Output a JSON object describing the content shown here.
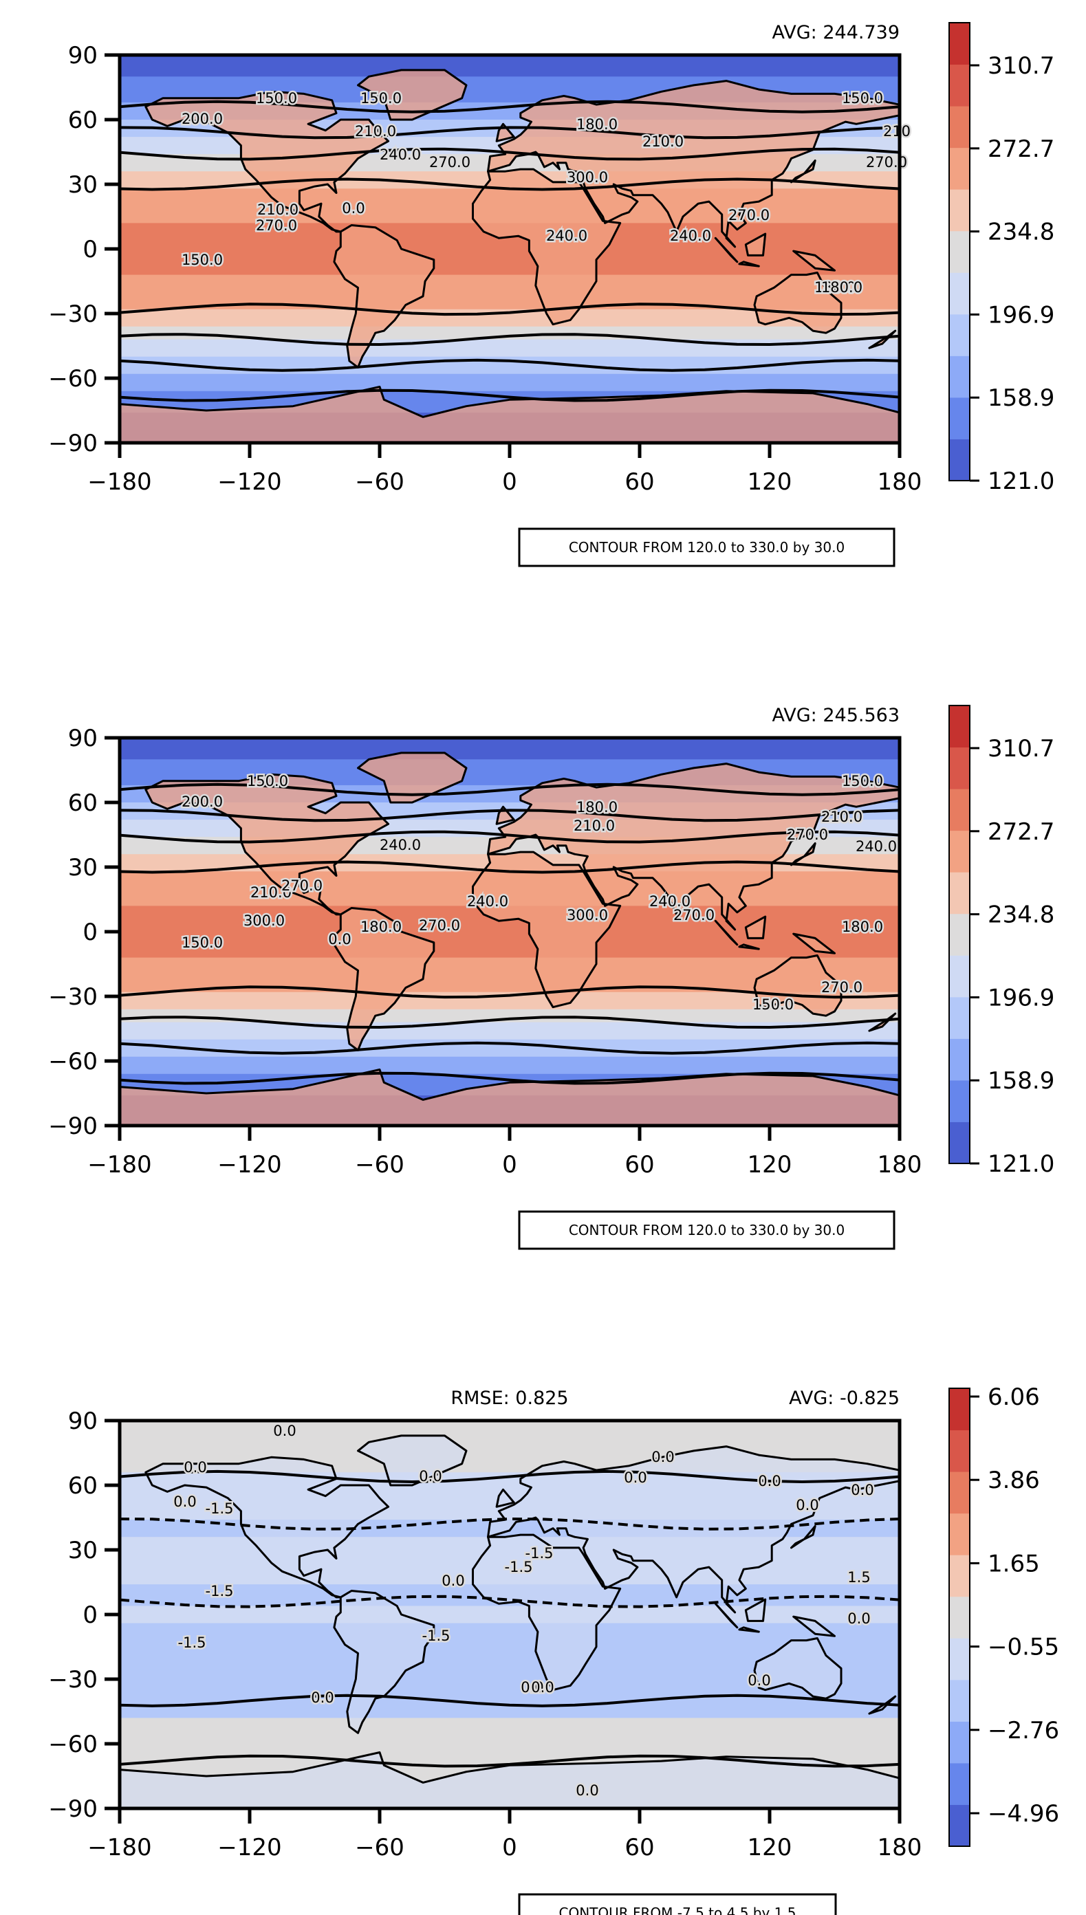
{
  "colors": {
    "ramp": [
      "#4a5fd1",
      "#6686ec",
      "#8daaf7",
      "#b3c8f9",
      "#cfdaf4",
      "#dddcdc",
      "#f3c7b3",
      "#f2a283",
      "#e77c60",
      "#d9574a",
      "#c5322f"
    ],
    "land_line": "#000000",
    "contour_line": "#000000",
    "frame": "#000000"
  },
  "x_ticks": [
    "−180",
    "−120",
    "−60",
    "0",
    "60",
    "120",
    "180"
  ],
  "y_ticks": [
    "90",
    "60",
    "30",
    "0",
    "−30",
    "−60",
    "−90"
  ],
  "panels": [
    {
      "id": "panel-1",
      "avg_label": "AVG: 244.739",
      "rmse_label": "",
      "note": "CONTOUR FROM 120.0 to 330.0 by 30.0",
      "colorbar_ticks": [
        "310.7",
        "272.7",
        "234.8",
        "196.9",
        "158.9",
        "121.0"
      ],
      "contour_labels": [
        "150.0",
        "150.0",
        "180.0",
        "180.0",
        "180.0",
        "210.0",
        "210.0",
        "210.0",
        "240.0",
        "240.0",
        "240.0",
        "270.0",
        "270.0",
        "270.0",
        "270.0",
        "300.0",
        "0.0",
        "150.0",
        "150.0",
        "200.0",
        "210"
      ],
      "bands": [
        {
          "lat": 90,
          "c": 0
        },
        {
          "lat": 80,
          "c": 1
        },
        {
          "lat": 68,
          "c": 2
        },
        {
          "lat": 60,
          "c": 3
        },
        {
          "lat": 52,
          "c": 4
        },
        {
          "lat": 44,
          "c": 5
        },
        {
          "lat": 36,
          "c": 6
        },
        {
          "lat": 28,
          "c": 7
        },
        {
          "lat": 12,
          "c": 8
        },
        {
          "lat": -12,
          "c": 7
        },
        {
          "lat": -28,
          "c": 6
        },
        {
          "lat": -36,
          "c": 5
        },
        {
          "lat": -42,
          "c": 4
        },
        {
          "lat": -50,
          "c": 3
        },
        {
          "lat": -58,
          "c": 2
        },
        {
          "lat": -66,
          "c": 1
        },
        {
          "lat": -76,
          "c": 0
        }
      ]
    },
    {
      "id": "panel-2",
      "avg_label": "AVG: 245.563",
      "rmse_label": "",
      "note": "CONTOUR FROM 120.0 to 330.0 by 30.0",
      "colorbar_ticks": [
        "310.7",
        "272.7",
        "234.8",
        "196.9",
        "158.9",
        "121.0"
      ],
      "contour_labels": [
        "150.0",
        "150.0",
        "180.0",
        "180.0",
        "180.0",
        "210.0",
        "210.0",
        "210.0",
        "240.0",
        "240.0",
        "240.0",
        "240.0",
        "270.0",
        "270.0",
        "270.0",
        "270.0",
        "270.0",
        "300.0",
        "300.0",
        "0.0",
        "150.0",
        "150.0",
        "200.0"
      ],
      "bands": [
        {
          "lat": 90,
          "c": 0
        },
        {
          "lat": 80,
          "c": 1
        },
        {
          "lat": 68,
          "c": 2
        },
        {
          "lat": 60,
          "c": 3
        },
        {
          "lat": 52,
          "c": 4
        },
        {
          "lat": 44,
          "c": 5
        },
        {
          "lat": 36,
          "c": 6
        },
        {
          "lat": 28,
          "c": 7
        },
        {
          "lat": 12,
          "c": 8
        },
        {
          "lat": -12,
          "c": 7
        },
        {
          "lat": -28,
          "c": 6
        },
        {
          "lat": -36,
          "c": 5
        },
        {
          "lat": -42,
          "c": 4
        },
        {
          "lat": -50,
          "c": 3
        },
        {
          "lat": -58,
          "c": 2
        },
        {
          "lat": -66,
          "c": 1
        },
        {
          "lat": -76,
          "c": 0
        }
      ]
    },
    {
      "id": "panel-3",
      "avg_label": "AVG: -0.825",
      "rmse_label": "RMSE: 0.825",
      "note": "CONTOUR FROM -7.5 to 4.5 by 1.5",
      "colorbar_ticks": [
        "6.06",
        "3.86",
        "1.65",
        "−0.55",
        "−2.76",
        "−4.96"
      ],
      "contour_labels": [
        "0.0",
        "0.0",
        "0.0",
        "0.0",
        "0.0",
        "0.0",
        "0.0",
        "0.0",
        "0.0",
        "0.0",
        "0.0",
        "0.0",
        "0.0",
        "0.0",
        "0.0",
        "-1.5",
        "-1.5",
        "-1.5",
        "-1.5",
        "-1.5",
        "-1.5",
        "1.5",
        "0.0"
      ],
      "bands": [
        {
          "lat": 90,
          "c": 5
        },
        {
          "lat": 66,
          "c": 4
        },
        {
          "lat": 44,
          "c": 3
        },
        {
          "lat": 36,
          "c": 4
        },
        {
          "lat": 14,
          "c": 3
        },
        {
          "lat": 4,
          "c": 4
        },
        {
          "lat": -4,
          "c": 3
        },
        {
          "lat": -48,
          "c": 5
        }
      ]
    }
  ]
}
